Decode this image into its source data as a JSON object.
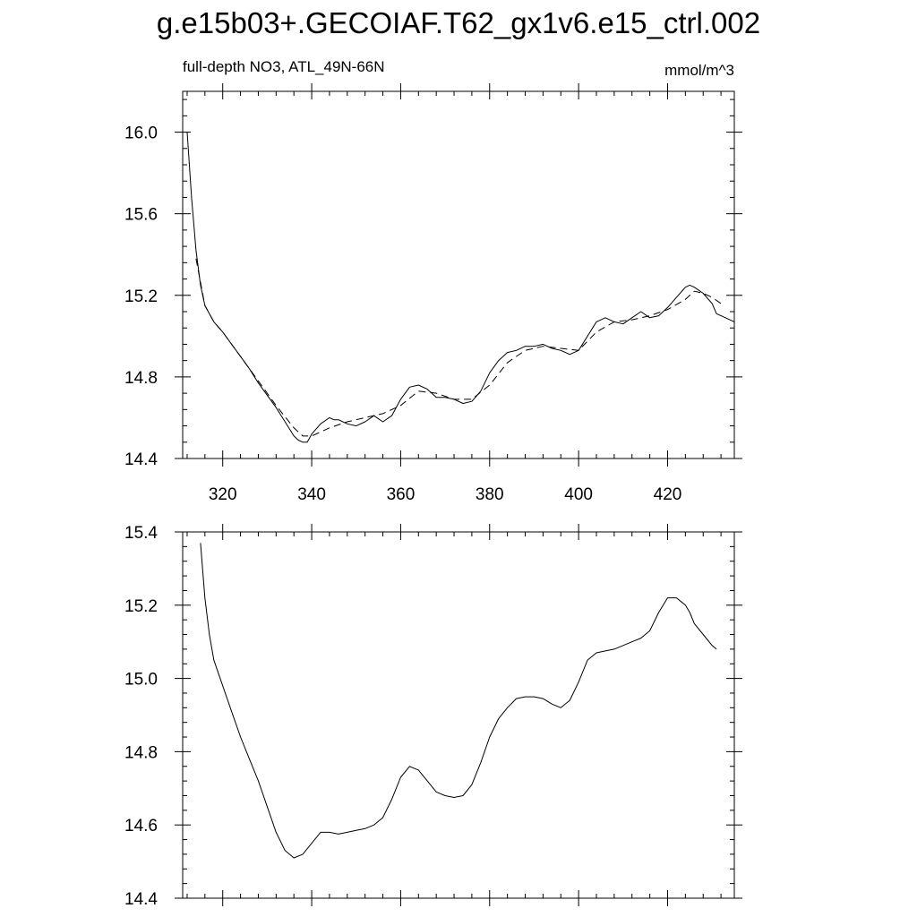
{
  "title": "g.e15b03+.GECOIAF.T62_gx1v6.e15_ctrl.002",
  "subtitle_left": "full-depth NO3, ATL_49N-66N",
  "subtitle_right": "mmol/m^3",
  "chart_data": [
    {
      "type": "line",
      "title": "",
      "xlabel": "",
      "ylabel": "",
      "xlim": [
        311,
        435
      ],
      "ylim": [
        14.4,
        16.2
      ],
      "xticks": [
        320,
        340,
        360,
        380,
        400,
        420
      ],
      "yticks": [
        14.4,
        14.8,
        15.2,
        15.6,
        16.0
      ],
      "ytick_labels": [
        "14.4",
        "14.8",
        "15.2",
        "15.6",
        "16.0"
      ],
      "grid": false,
      "series": [
        {
          "style": "solid",
          "x": [
            312,
            313,
            314,
            315,
            316,
            318,
            320,
            322,
            324,
            326,
            328,
            330,
            332,
            334,
            336,
            337,
            338,
            339,
            340,
            342,
            344,
            345,
            346,
            348,
            350,
            352,
            354,
            356,
            358,
            360,
            362,
            364,
            366,
            368,
            370,
            372,
            374,
            376,
            378,
            380,
            382,
            384,
            386,
            388,
            390,
            392,
            394,
            396,
            398,
            400,
            402,
            404,
            406,
            408,
            410,
            412,
            414,
            416,
            418,
            420,
            422,
            424,
            425,
            426,
            428,
            430,
            431,
            432,
            434,
            435
          ],
          "y": [
            16.0,
            15.68,
            15.42,
            15.25,
            15.15,
            15.07,
            15.02,
            14.96,
            14.9,
            14.84,
            14.77,
            14.71,
            14.65,
            14.58,
            14.51,
            14.49,
            14.48,
            14.48,
            14.52,
            14.57,
            14.6,
            14.59,
            14.59,
            14.57,
            14.56,
            14.58,
            14.61,
            14.58,
            14.61,
            14.69,
            14.75,
            14.76,
            14.74,
            14.7,
            14.7,
            14.69,
            14.67,
            14.68,
            14.73,
            14.82,
            14.88,
            14.92,
            14.93,
            14.95,
            14.95,
            14.96,
            14.94,
            14.93,
            14.91,
            14.93,
            15.0,
            15.07,
            15.09,
            15.07,
            15.06,
            15.09,
            15.12,
            15.09,
            15.1,
            15.14,
            15.19,
            15.24,
            15.25,
            15.24,
            15.21,
            15.16,
            15.11,
            15.1,
            15.08,
            15.07
          ]
        },
        {
          "style": "dashed",
          "x": [
            314,
            316,
            318,
            320,
            324,
            328,
            332,
            336,
            338,
            340,
            344,
            348,
            352,
            356,
            360,
            364,
            368,
            372,
            376,
            380,
            384,
            388,
            392,
            396,
            400,
            404,
            408,
            412,
            416,
            420,
            424,
            426,
            428,
            430,
            432
          ],
          "y": [
            15.38,
            15.15,
            15.07,
            15.02,
            14.9,
            14.78,
            14.66,
            14.55,
            14.51,
            14.51,
            14.55,
            14.58,
            14.6,
            14.62,
            14.66,
            14.73,
            14.72,
            14.69,
            14.69,
            14.76,
            14.87,
            14.93,
            14.95,
            14.94,
            14.93,
            15.02,
            15.07,
            15.08,
            15.1,
            15.13,
            15.18,
            15.22,
            15.21,
            15.19,
            15.16
          ]
        }
      ]
    },
    {
      "type": "line",
      "title": "",
      "xlabel": "",
      "ylabel": "",
      "xlim": [
        311,
        435
      ],
      "ylim": [
        14.4,
        15.4
      ],
      "xticks": [
        320,
        340,
        360,
        380,
        400,
        420
      ],
      "yticks": [
        14.4,
        14.6,
        14.8,
        15.0,
        15.2,
        15.4
      ],
      "ytick_labels": [
        "14.4",
        "14.6",
        "14.8",
        "15.0",
        "15.2",
        "15.4"
      ],
      "grid": false,
      "series": [
        {
          "style": "solid",
          "x": [
            315,
            316,
            317,
            318,
            320,
            322,
            324,
            326,
            328,
            330,
            332,
            334,
            336,
            338,
            340,
            342,
            344,
            346,
            348,
            350,
            352,
            354,
            356,
            358,
            360,
            362,
            364,
            366,
            368,
            370,
            372,
            374,
            376,
            378,
            380,
            382,
            384,
            386,
            388,
            390,
            392,
            394,
            396,
            398,
            400,
            402,
            404,
            406,
            408,
            410,
            412,
            414,
            416,
            418,
            420,
            422,
            424,
            425,
            426,
            428,
            430,
            431
          ],
          "y": [
            15.37,
            15.22,
            15.12,
            15.05,
            14.98,
            14.91,
            14.84,
            14.78,
            14.72,
            14.65,
            14.58,
            14.53,
            14.51,
            14.52,
            14.55,
            14.58,
            14.58,
            14.575,
            14.58,
            14.585,
            14.59,
            14.6,
            14.62,
            14.67,
            14.73,
            14.76,
            14.75,
            14.72,
            14.69,
            14.68,
            14.675,
            14.68,
            14.71,
            14.77,
            14.84,
            14.89,
            14.92,
            14.945,
            14.95,
            14.95,
            14.945,
            14.93,
            14.92,
            14.94,
            14.99,
            15.05,
            15.07,
            15.075,
            15.08,
            15.09,
            15.1,
            15.11,
            15.13,
            15.18,
            15.22,
            15.22,
            15.2,
            15.18,
            15.15,
            15.12,
            15.09,
            15.08
          ]
        }
      ]
    }
  ]
}
